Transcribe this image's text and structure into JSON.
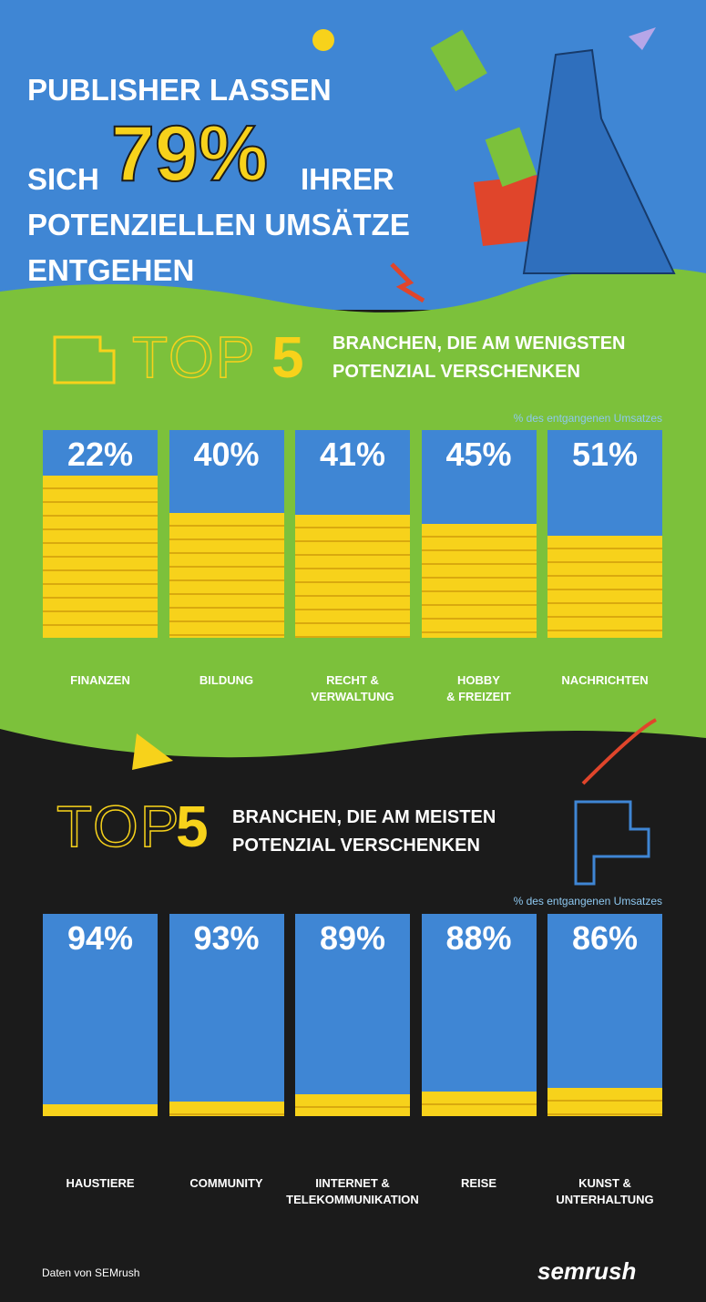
{
  "header": {
    "line1": "PUBLISHER LASSEN",
    "line2_start": "SICH",
    "highlight": "79%",
    "line2_end": "IHRER",
    "line3": "POTENZIELLEN UMSÄTZE",
    "line4": "ENTGEHEN"
  },
  "chart_data": [
    {
      "type": "bar",
      "rank_label": "TOP",
      "rank": "5",
      "title": "BRANCHEN, DIE AM WENIGSTEN\nPOTENZIAL VERSCHENKEN",
      "y_label": "% des entgangenen Umsatzes",
      "categories": [
        "FINANZEN",
        "BILDUNG",
        "RECHT &\nVERWALTUNG",
        "HOBBY\n& FREIZEIT",
        "NACHRICHTEN"
      ],
      "values": [
        22,
        40,
        41,
        45,
        51
      ],
      "value_labels": [
        "22%",
        "40%",
        "41%",
        "45%",
        "51%"
      ],
      "ylim": [
        0,
        100
      ],
      "color": "#3f86d4",
      "rest_color": "#f7d21b"
    },
    {
      "type": "bar",
      "rank_label": "TOP",
      "rank": "5",
      "title": "BRANCHEN, DIE AM MEISTEN\nPOTENZIAL VERSCHENKEN",
      "y_label": "% des entgangenen Umsatzes",
      "categories": [
        "HAUSTIERE",
        "COMMUNITY",
        "IINTERNET &\nTELEKOMMUNIKATION",
        "REISE",
        "KUNST &\nUNTERHALTUNG"
      ],
      "values": [
        94,
        93,
        89,
        88,
        86
      ],
      "value_labels": [
        "94%",
        "93%",
        "89%",
        "88%",
        "86%"
      ],
      "ylim": [
        0,
        100
      ],
      "color": "#3f86d4",
      "rest_color": "#f7d21b"
    }
  ],
  "footer": {
    "source": "Daten von SEMrush",
    "logo": "semrush"
  }
}
